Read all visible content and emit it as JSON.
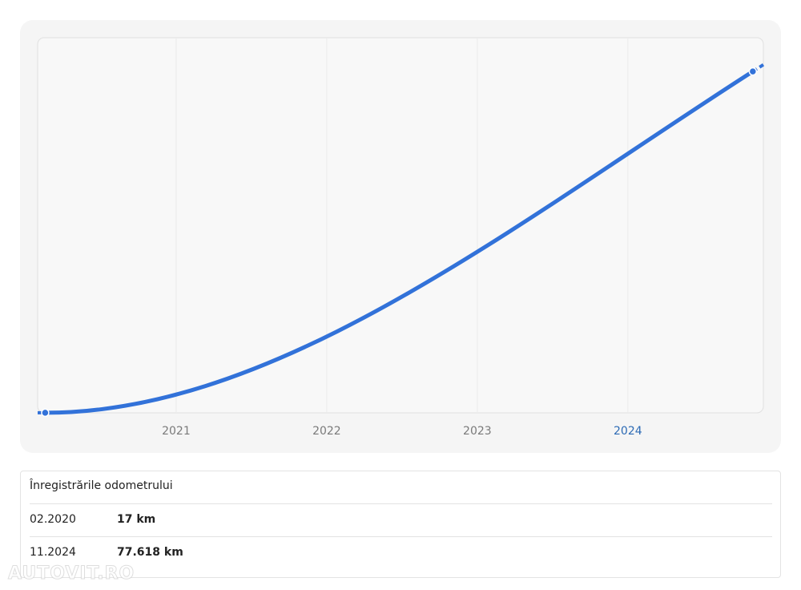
{
  "chart_data": {
    "type": "line",
    "x": [
      2020.13,
      2024.83
    ],
    "values": [
      17,
      77618
    ],
    "color": "#3272d9",
    "xlim": [
      2020.08,
      2024.9
    ],
    "xticks": [
      2021,
      2022,
      2023,
      2024
    ],
    "ylim": [
      0,
      85300
    ],
    "grid": true
  },
  "table": {
    "title": "Înregistrările odometrului",
    "rows": [
      [
        "02.2020",
        "17 km"
      ],
      [
        "11.2024",
        "77.618 km"
      ]
    ]
  },
  "watermark": "AUTOVIT.RO"
}
